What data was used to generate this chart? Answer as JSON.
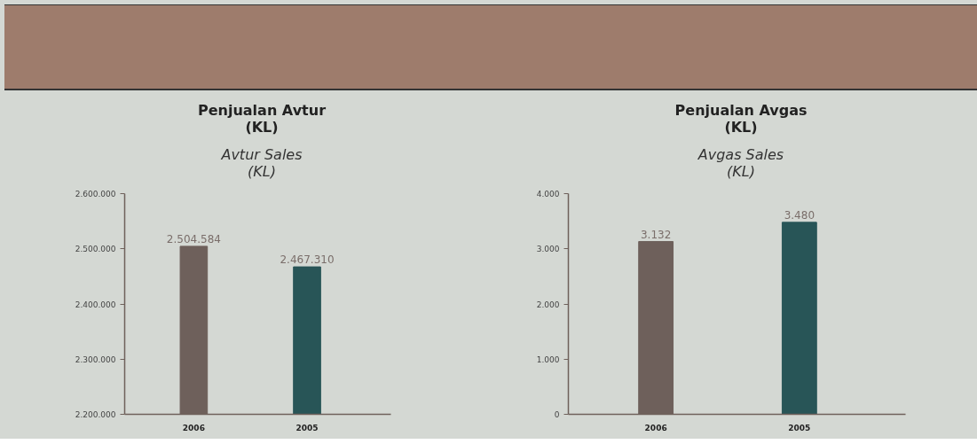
{
  "chart_data": [
    {
      "type": "bar",
      "title": "Penjualan Avtur\n(KL)",
      "subtitle": "Avtur Sales\n(KL)",
      "categories": [
        "2006",
        "2005"
      ],
      "values": [
        2504584,
        2467310
      ],
      "colors": [
        "#6e605b",
        "#285557"
      ],
      "value_labels": [
        "2.504.584",
        "2.467.310"
      ],
      "ylim": [
        2200000,
        2600000
      ],
      "yticks": [
        {
          "value": 2200000,
          "label": "2.200.000"
        },
        {
          "value": 2300000,
          "label": "2.300.000"
        },
        {
          "value": 2400000,
          "label": "2.400.000"
        },
        {
          "value": 2500000,
          "label": "2.500.000"
        },
        {
          "value": 2600000,
          "label": "2.600.000"
        }
      ],
      "grid": false
    },
    {
      "type": "bar",
      "title": "Penjualan Avgas\n(KL)",
      "subtitle": "Avgas Sales\n(KL)",
      "categories": [
        "2006",
        "2005"
      ],
      "values": [
        3132,
        3480
      ],
      "colors": [
        "#6e605b",
        "#285557"
      ],
      "value_labels": [
        "3.132",
        "3.480"
      ],
      "ylim": [
        0,
        4000
      ],
      "yticks": [
        0,
        {
          "value": 1000,
          "label": "1.000"
        },
        {
          "value": 2000,
          "label": "2.000"
        },
        {
          "value": 3000,
          "label": "3.000"
        },
        {
          "value": 4000,
          "label": "4.000"
        }
      ],
      "grid": false
    }
  ]
}
